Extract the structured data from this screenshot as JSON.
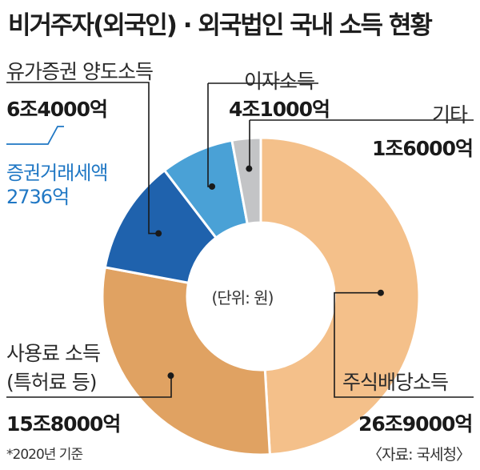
{
  "title": "비거주자(외국인) · 외국법인 국내 소득 현황",
  "unit_text": "(단위: 원)",
  "note": "*2020년 기준",
  "source": "〈자료: 국세청〉",
  "colors": {
    "dividend": "#f4c08a",
    "royalty": "#e0a262",
    "securities": "#1f62ad",
    "interest": "#4aa1d6",
    "other": "#c3c4c6",
    "tax_text": "#1f77c4"
  },
  "chart_data": {
    "type": "pie",
    "title": "비거주자(외국인) · 외국법인 국내 소득 현황",
    "unit": "원",
    "slices": [
      {
        "key": "dividend",
        "label": "주식배당소득",
        "value_text": "26조9000억",
        "value": 269000
      },
      {
        "key": "royalty",
        "label": "사용료 소득",
        "label_line2": "(특허료 등)",
        "value_text": "15조8000억",
        "value": 158000
      },
      {
        "key": "securities",
        "label": "유가증권 양도소득",
        "value_text": "6조4000억",
        "value": 64000
      },
      {
        "key": "interest",
        "label": "이자소득",
        "value_text": "4조1000억",
        "value": 41000
      },
      {
        "key": "other",
        "label": "기타",
        "value_text": "1조6000억",
        "value": 16000
      }
    ],
    "annotation": {
      "label": "증권거래세액",
      "value_text": "2736억"
    }
  }
}
